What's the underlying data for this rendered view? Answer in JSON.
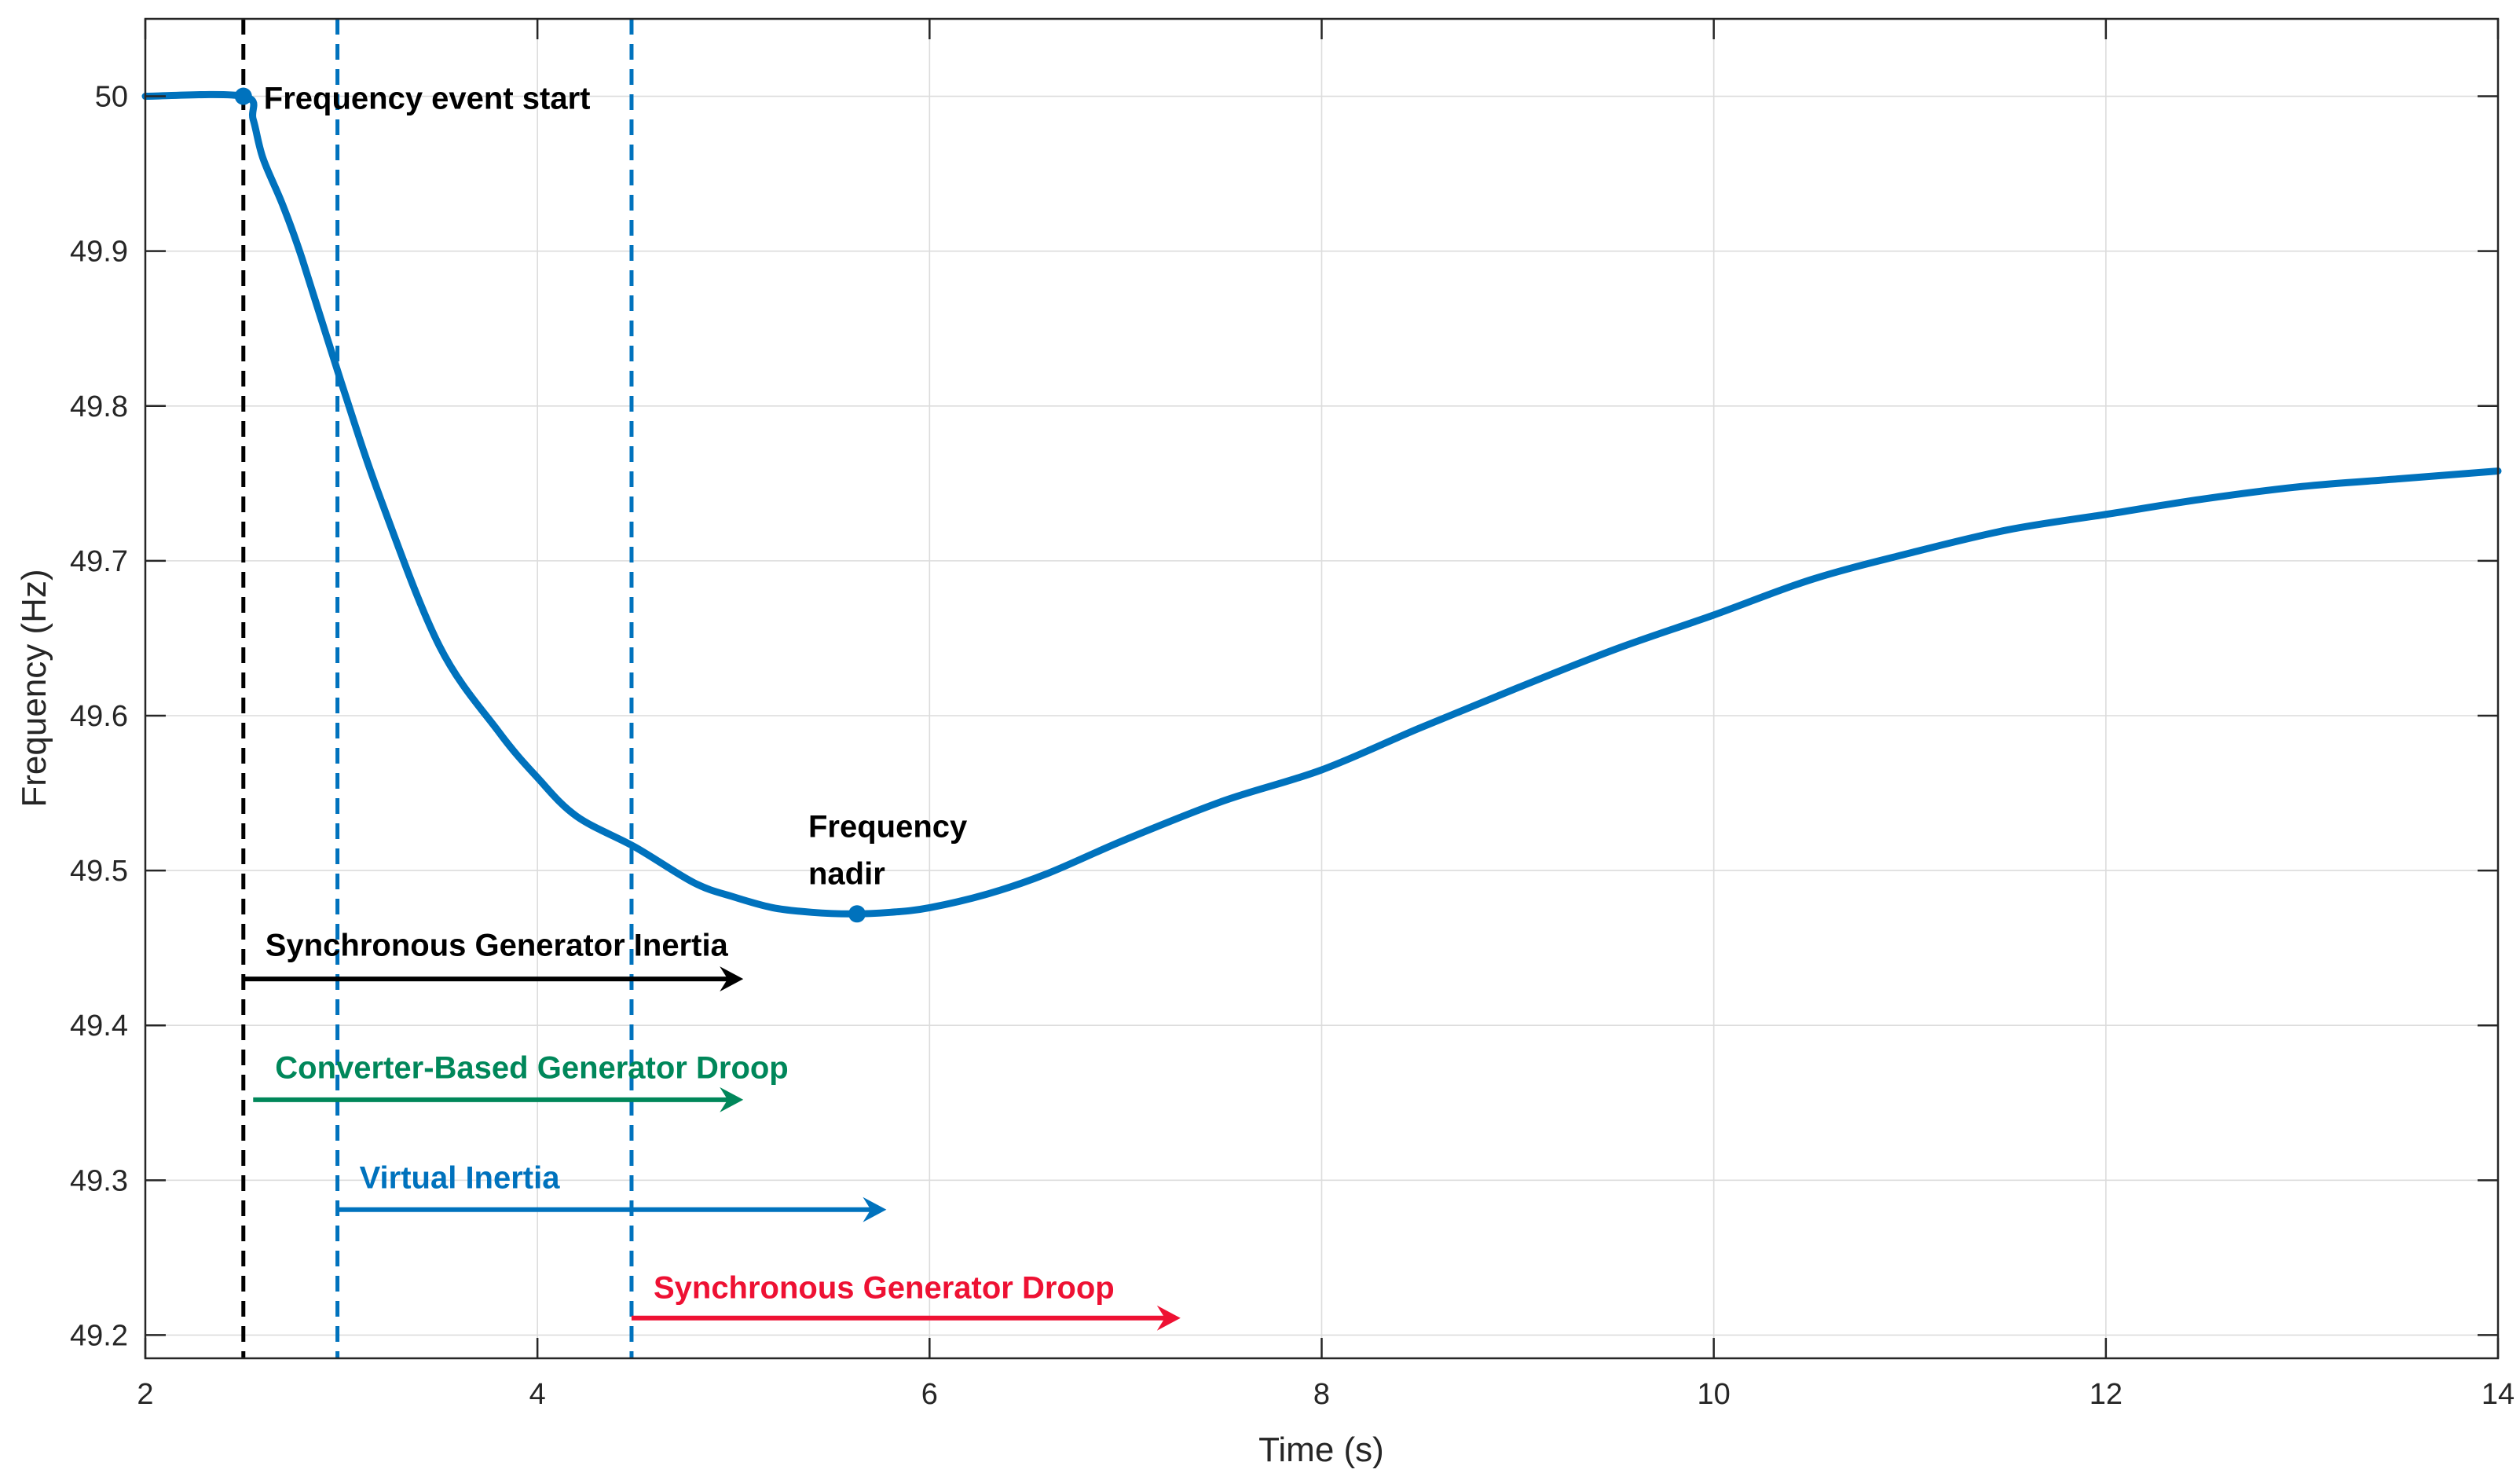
{
  "chart_data": {
    "type": "line",
    "title": "",
    "xlabel": "Time (s)",
    "ylabel": "Frequency (Hz)",
    "xlim": [
      2,
      14
    ],
    "ylim": [
      49.185,
      50.05
    ],
    "xticks": [
      2,
      4,
      6,
      8,
      10,
      12,
      14
    ],
    "xtick_labels": [
      "2",
      "4",
      "6",
      "8",
      "10",
      "12",
      "14"
    ],
    "yticks": [
      49.2,
      49.3,
      49.4,
      49.5,
      49.6,
      49.7,
      49.8,
      49.9,
      50
    ],
    "ytick_labels": [
      "49.2",
      "49.3",
      "49.4",
      "49.5",
      "49.6",
      "49.7",
      "49.8",
      "49.9",
      "50"
    ],
    "grid": true,
    "series": [
      {
        "color": "#0072BD",
        "x": [
          2.0,
          2.5,
          2.55,
          2.6,
          2.7,
          2.8,
          3.0,
          3.2,
          3.5,
          3.8,
          4.0,
          4.2,
          4.5,
          4.8,
          5.0,
          5.2,
          5.4,
          5.6,
          5.8,
          6.0,
          6.3,
          6.6,
          7.0,
          7.5,
          8.0,
          8.5,
          9.0,
          9.5,
          10.0,
          10.5,
          11.0,
          11.5,
          12.0,
          12.5,
          13.0,
          13.5,
          14.0
        ],
        "y": [
          50.0,
          50.0,
          49.985,
          49.96,
          49.93,
          49.895,
          49.815,
          49.74,
          49.645,
          49.59,
          49.56,
          49.535,
          49.515,
          49.492,
          49.483,
          49.476,
          49.473,
          49.472,
          49.473,
          49.476,
          49.485,
          49.498,
          49.52,
          49.545,
          49.565,
          49.592,
          49.618,
          49.643,
          49.665,
          49.688,
          49.705,
          49.72,
          49.73,
          49.74,
          49.748,
          49.753,
          49.758
        ]
      }
    ],
    "vlines": [
      {
        "x": 2.5,
        "color": "#000000",
        "style": "dashed"
      },
      {
        "x": 2.98,
        "color": "#0072BD",
        "style": "dashed"
      },
      {
        "x": 4.48,
        "color": "#0072BD",
        "style": "dashed"
      }
    ],
    "markers": [
      {
        "x": 2.5,
        "y": 50.0,
        "label": "Frequency event start",
        "color": "#000000"
      },
      {
        "x": 5.63,
        "y": 49.472,
        "label_lines": [
          "Frequency",
          "nadir"
        ],
        "color": "#000000"
      }
    ],
    "arrows": [
      {
        "label": "Synchronous Generator Inertia",
        "x_start": 2.5,
        "x_end": 5.05,
        "y": 49.43,
        "label_y": 49.452,
        "color": "#000000"
      },
      {
        "label": "Converter-Based Generator Droop",
        "x_start": 2.55,
        "x_end": 5.05,
        "y": 49.352,
        "label_y": 49.373,
        "color": "#00875A"
      },
      {
        "label": "Virtual Inertia",
        "x_start": 2.98,
        "x_end": 5.78,
        "y": 49.281,
        "label_y": 49.302,
        "color": "#0072BD"
      },
      {
        "label": "Synchronous Generator Droop",
        "x_start": 4.48,
        "x_end": 7.28,
        "y": 49.211,
        "label_y": 49.231,
        "color": "#EE1133"
      }
    ]
  }
}
